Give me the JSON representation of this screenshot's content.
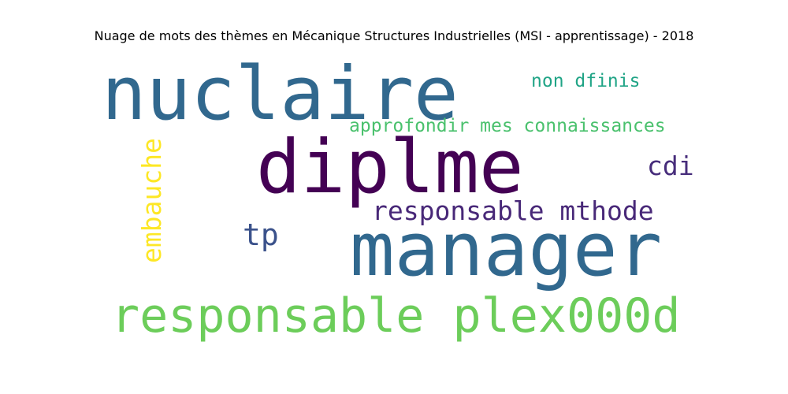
{
  "title": "Nuage de mots des thèmes en Mécanique Structures Industrielles (MSI - apprentissage) - 2018",
  "words": [
    {
      "text": "nuclaire",
      "color": "#31688e"
    },
    {
      "text": "diplme",
      "color": "#440154"
    },
    {
      "text": "manager",
      "color": "#31688e"
    },
    {
      "text": "responsable plex000d",
      "color": "#6ccd5a"
    },
    {
      "text": "responsable mthode",
      "color": "#482878"
    },
    {
      "text": "approfondir mes connaissances",
      "color": "#4ac16d"
    },
    {
      "text": "non dfinis",
      "color": "#20a486"
    },
    {
      "text": "cdi",
      "color": "#472d7b"
    },
    {
      "text": "tp",
      "color": "#3b528b"
    },
    {
      "text": "embauche",
      "color": "#fde725"
    }
  ]
}
